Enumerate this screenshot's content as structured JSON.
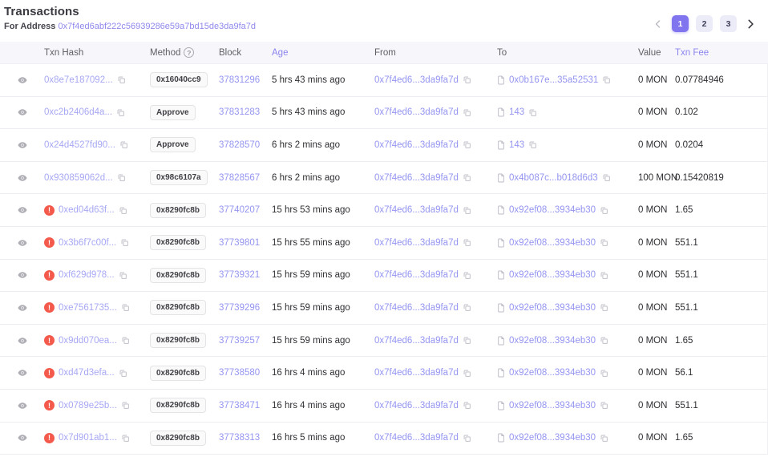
{
  "page": {
    "title": "Transactions",
    "for_address_label": "For Address",
    "address": "0x7f4ed6abf222c56939286e59a7bd15de3da9fa7d"
  },
  "pagination": {
    "pages": [
      "1",
      "2",
      "3"
    ],
    "active": "1",
    "prev_icon": "chevron-left",
    "next_icon": "chevron-right"
  },
  "table": {
    "columns": {
      "txn_hash": "Txn Hash",
      "method": "Method",
      "block": "Block",
      "age": "Age",
      "from": "From",
      "to": "To",
      "value": "Value",
      "txn_fee": "Txn Fee"
    },
    "rows": [
      {
        "failed": false,
        "hash": "0x8e7e187092...",
        "method": "0x16040cc9",
        "block": "37831296",
        "age": "5 hrs 43 mins ago",
        "from": "0x7f4ed6...3da9fa7d",
        "to": "0x0b167e...35a52531",
        "value": "0 MON",
        "fee": "0.07784946"
      },
      {
        "failed": false,
        "hash": "0xc2b2406d4a...",
        "method": "Approve",
        "block": "37831283",
        "age": "5 hrs 43 mins ago",
        "from": "0x7f4ed6...3da9fa7d",
        "to": "143",
        "value": "0 MON",
        "fee": "0.102"
      },
      {
        "failed": false,
        "hash": "0x24d4527fd90...",
        "method": "Approve",
        "block": "37828570",
        "age": "6 hrs 2 mins ago",
        "from": "0x7f4ed6...3da9fa7d",
        "to": "143",
        "value": "0 MON",
        "fee": "0.0204"
      },
      {
        "failed": false,
        "hash": "0x930859062d...",
        "method": "0x98c6107a",
        "block": "37828567",
        "age": "6 hrs 2 mins ago",
        "from": "0x7f4ed6...3da9fa7d",
        "to": "0x4b087c...b018d6d3",
        "value": "100 MON",
        "fee": "0.15420819"
      },
      {
        "failed": true,
        "hash": "0xed04d63f...",
        "method": "0x8290fc8b",
        "block": "37740207",
        "age": "15 hrs 53 mins ago",
        "from": "0x7f4ed6...3da9fa7d",
        "to": "0x92ef08...3934eb30",
        "value": "0 MON",
        "fee": "1.65"
      },
      {
        "failed": true,
        "hash": "0x3b6f7c00f...",
        "method": "0x8290fc8b",
        "block": "37739801",
        "age": "15 hrs 55 mins ago",
        "from": "0x7f4ed6...3da9fa7d",
        "to": "0x92ef08...3934eb30",
        "value": "0 MON",
        "fee": "551.1"
      },
      {
        "failed": true,
        "hash": "0xf629d978...",
        "method": "0x8290fc8b",
        "block": "37739321",
        "age": "15 hrs 59 mins ago",
        "from": "0x7f4ed6...3da9fa7d",
        "to": "0x92ef08...3934eb30",
        "value": "0 MON",
        "fee": "551.1"
      },
      {
        "failed": true,
        "hash": "0xe7561735...",
        "method": "0x8290fc8b",
        "block": "37739296",
        "age": "15 hrs 59 mins ago",
        "from": "0x7f4ed6...3da9fa7d",
        "to": "0x92ef08...3934eb30",
        "value": "0 MON",
        "fee": "551.1"
      },
      {
        "failed": true,
        "hash": "0x9dd070ea...",
        "method": "0x8290fc8b",
        "block": "37739257",
        "age": "15 hrs 59 mins ago",
        "from": "0x7f4ed6...3da9fa7d",
        "to": "0x92ef08...3934eb30",
        "value": "0 MON",
        "fee": "1.65"
      },
      {
        "failed": true,
        "hash": "0xd47d3efa...",
        "method": "0x8290fc8b",
        "block": "37738580",
        "age": "16 hrs 4 mins ago",
        "from": "0x7f4ed6...3da9fa7d",
        "to": "0x92ef08...3934eb30",
        "value": "0 MON",
        "fee": "56.1"
      },
      {
        "failed": true,
        "hash": "0x0789e25b...",
        "method": "0x8290fc8b",
        "block": "37738471",
        "age": "16 hrs 4 mins ago",
        "from": "0x7f4ed6...3da9fa7d",
        "to": "0x92ef08...3934eb30",
        "value": "0 MON",
        "fee": "551.1"
      },
      {
        "failed": true,
        "hash": "0x7d901ab1...",
        "method": "0x8290fc8b",
        "block": "37738313",
        "age": "16 hrs 5 mins ago",
        "from": "0x7f4ed6...3da9fa7d",
        "to": "0x92ef08...3934eb30",
        "value": "0 MON",
        "fee": "1.65"
      }
    ]
  },
  "colors": {
    "accent": "#8074ef",
    "link_purple": "#9495f1",
    "error_red": "#f45a4c",
    "header_bg": "#f7f7fb"
  }
}
